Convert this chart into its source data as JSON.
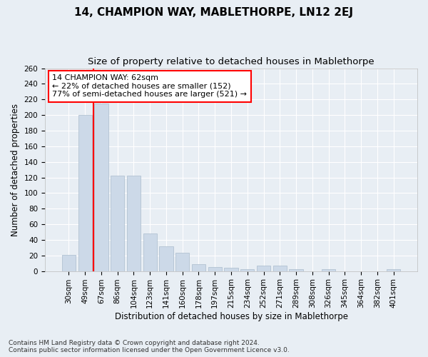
{
  "title": "14, CHAMPION WAY, MABLETHORPE, LN12 2EJ",
  "subtitle": "Size of property relative to detached houses in Mablethorpe",
  "xlabel": "Distribution of detached houses by size in Mablethorpe",
  "ylabel": "Number of detached properties",
  "categories": [
    "30sqm",
    "49sqm",
    "67sqm",
    "86sqm",
    "104sqm",
    "123sqm",
    "141sqm",
    "160sqm",
    "178sqm",
    "197sqm",
    "215sqm",
    "234sqm",
    "252sqm",
    "271sqm",
    "289sqm",
    "308sqm",
    "326sqm",
    "345sqm",
    "364sqm",
    "382sqm",
    "401sqm"
  ],
  "values": [
    21,
    200,
    215,
    122,
    122,
    48,
    32,
    23,
    9,
    5,
    4,
    2,
    7,
    7,
    2,
    0,
    2,
    0,
    0,
    0,
    2
  ],
  "bar_color": "#ccd9e8",
  "bar_edgecolor": "#aabccc",
  "vline_x_index": 1.5,
  "vline_color": "red",
  "annotation_text": "14 CHAMPION WAY: 62sqm\n← 22% of detached houses are smaller (152)\n77% of semi-detached houses are larger (521) →",
  "annotation_box_color": "white",
  "annotation_box_edgecolor": "red",
  "ylim": [
    0,
    260
  ],
  "yticks": [
    0,
    20,
    40,
    60,
    80,
    100,
    120,
    140,
    160,
    180,
    200,
    220,
    240,
    260
  ],
  "footnote": "Contains HM Land Registry data © Crown copyright and database right 2024.\nContains public sector information licensed under the Open Government Licence v3.0.",
  "title_fontsize": 11,
  "subtitle_fontsize": 9.5,
  "xlabel_fontsize": 8.5,
  "ylabel_fontsize": 8.5,
  "tick_fontsize": 7.5,
  "annotation_fontsize": 8,
  "footnote_fontsize": 6.5,
  "background_color": "#e8eef4",
  "plot_background_color": "#e8eef4",
  "grid_color": "#ffffff"
}
